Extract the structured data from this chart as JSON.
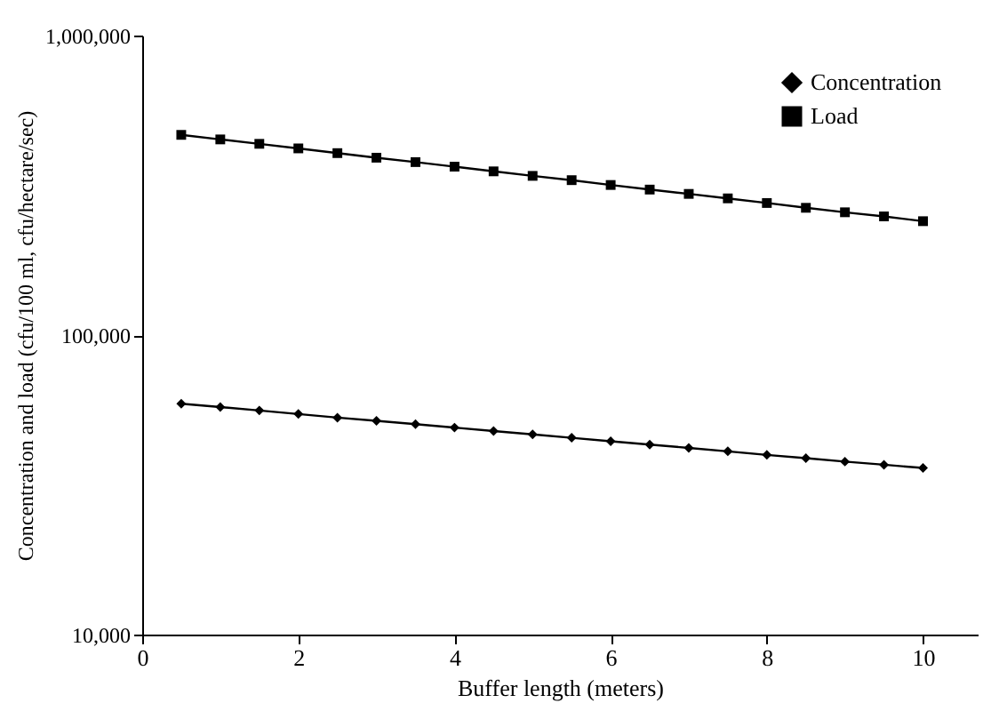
{
  "chart_data": {
    "type": "line",
    "xlabel": "Buffer length (meters)",
    "ylabel": "Concentration and load (cfu/100 ml, cfu/hectare/sec)",
    "x": [
      0.5,
      1,
      1.5,
      2,
      2.5,
      3,
      3.5,
      4,
      4.5,
      5,
      5.5,
      6,
      6.5,
      7,
      7.5,
      8,
      8.5,
      9,
      9.5,
      10
    ],
    "series": [
      {
        "name": "Concentration",
        "color": "#000000",
        "marker": "diamond",
        "values": [
          59000,
          57500,
          56000,
          54500,
          53000,
          51700,
          50400,
          49100,
          47800,
          46600,
          45400,
          44200,
          43100,
          42000,
          40900,
          39800,
          38800,
          37800,
          36900,
          36000
        ]
      },
      {
        "name": "Load",
        "color": "#000000",
        "marker": "square",
        "values": [
          466000,
          450000,
          435000,
          420000,
          405000,
          391000,
          378000,
          365000,
          352000,
          340000,
          329000,
          317000,
          306000,
          296000,
          286000,
          276000,
          266000,
          257000,
          249000,
          240000
        ]
      }
    ],
    "log": "y",
    "ylim": [
      10000,
      1000000
    ],
    "yticks": [
      {
        "value": 10000,
        "label": "10,000"
      },
      {
        "value": 100000,
        "label": "100,000"
      },
      {
        "value": 1000000,
        "label": "1,000,000"
      }
    ],
    "xlim": [
      0,
      10.7
    ],
    "xticks": [
      0,
      2,
      4,
      6,
      8,
      10
    ],
    "grid": false,
    "legend": "top right",
    "line_style": "solid"
  }
}
